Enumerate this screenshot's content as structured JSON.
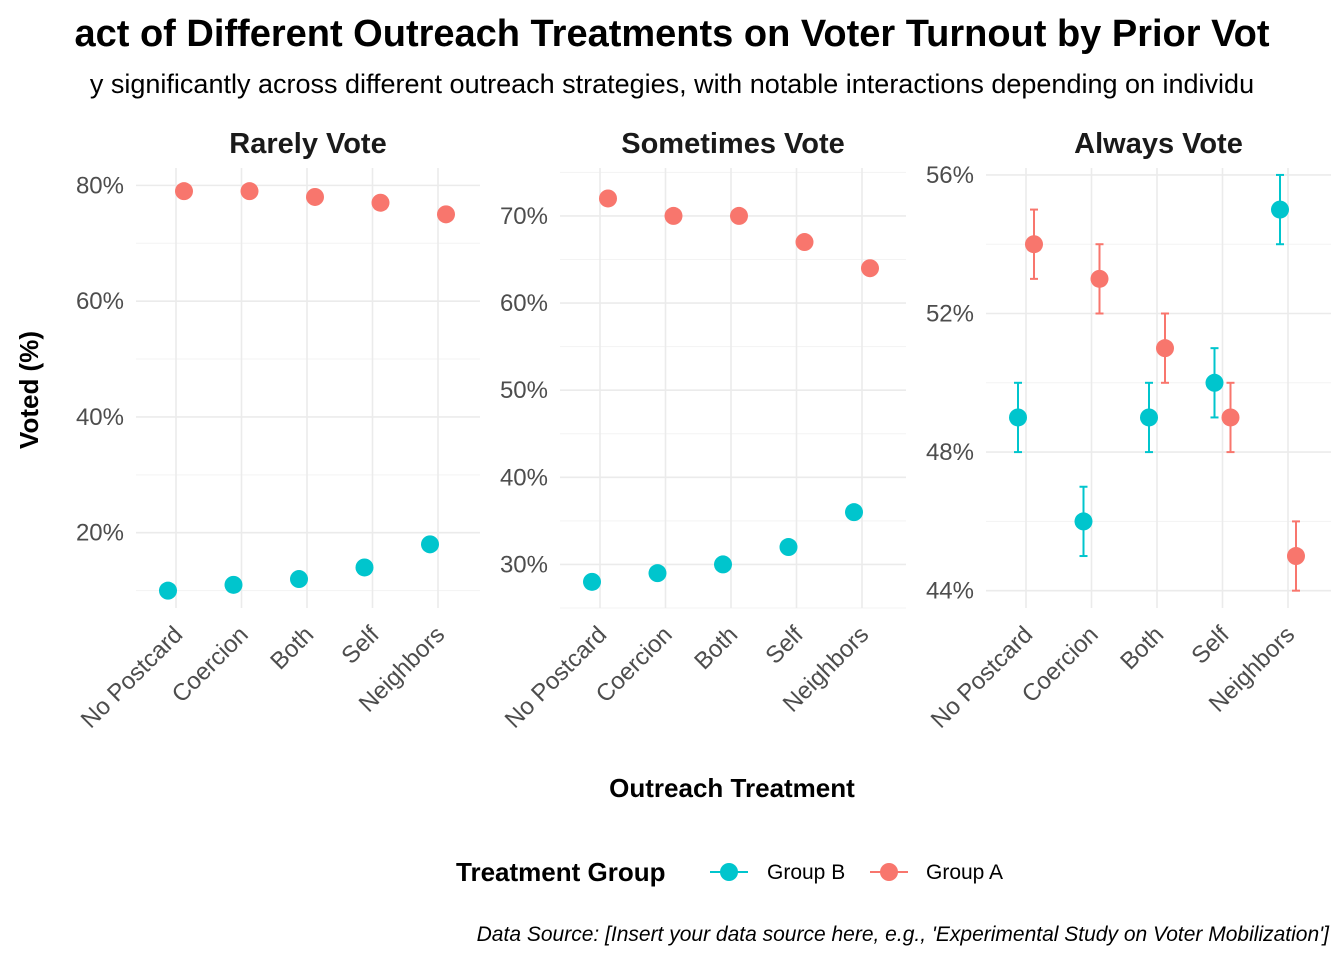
{
  "chart_data": {
    "type": "scatter",
    "title": "act of Different Outreach Treatments on Voter Turnout by Prior Vot",
    "subtitle": "y significantly across different outreach strategies, with notable interactions depending on individu",
    "xlabel": "Outreach Treatment",
    "ylabel": "Voted (%)",
    "caption": "Data Source: [Insert your data source here, e.g., 'Experimental Study on Voter Mobilization']",
    "categories": [
      "No Postcard",
      "Coercion",
      "Both",
      "Self",
      "Neighbors"
    ],
    "legend": {
      "title": "Treatment Group",
      "position": "bottom",
      "entries": [
        {
          "name": "Group B",
          "color": "#00C5CD"
        },
        {
          "name": "Group A",
          "color": "#F8766D"
        }
      ]
    },
    "grid": true,
    "panels": [
      {
        "title": "Rarely Vote",
        "ylim": [
          7,
          83
        ],
        "yticks": [
          20,
          40,
          60,
          80
        ],
        "ytick_labels": [
          "20%",
          "40%",
          "60%",
          "80%"
        ],
        "series": [
          {
            "name": "Group B",
            "color": "#00C5CD",
            "values": [
              10,
              11,
              12,
              14,
              18
            ]
          },
          {
            "name": "Group A",
            "color": "#F8766D",
            "values": [
              79,
              79,
              78,
              77,
              75
            ]
          }
        ]
      },
      {
        "title": "Sometimes Vote",
        "ylim": [
          25,
          75.5
        ],
        "yticks": [
          30,
          40,
          50,
          60,
          70
        ],
        "ytick_labels": [
          "30%",
          "40%",
          "50%",
          "60%",
          "70%"
        ],
        "series": [
          {
            "name": "Group B",
            "color": "#00C5CD",
            "values": [
              28,
              29,
              30,
              32,
              36
            ]
          },
          {
            "name": "Group A",
            "color": "#F8766D",
            "values": [
              72,
              70,
              70,
              67,
              64
            ]
          }
        ]
      },
      {
        "title": "Always Vote",
        "ylim": [
          43.5,
          56.2
        ],
        "yticks": [
          44,
          48,
          52,
          56
        ],
        "ytick_labels": [
          "44%",
          "48%",
          "52%",
          "56%"
        ],
        "series": [
          {
            "name": "Group B",
            "color": "#00C5CD",
            "values": [
              49,
              46,
              49,
              50,
              55
            ],
            "err_low": [
              48,
              45,
              48,
              49,
              54
            ],
            "err_high": [
              50,
              47,
              50,
              51,
              56
            ]
          },
          {
            "name": "Group A",
            "color": "#F8766D",
            "values": [
              54,
              53,
              51,
              49,
              45
            ],
            "err_low": [
              53,
              52,
              50,
              48,
              44
            ],
            "err_high": [
              55,
              54,
              52,
              50,
              46
            ]
          }
        ]
      }
    ]
  }
}
